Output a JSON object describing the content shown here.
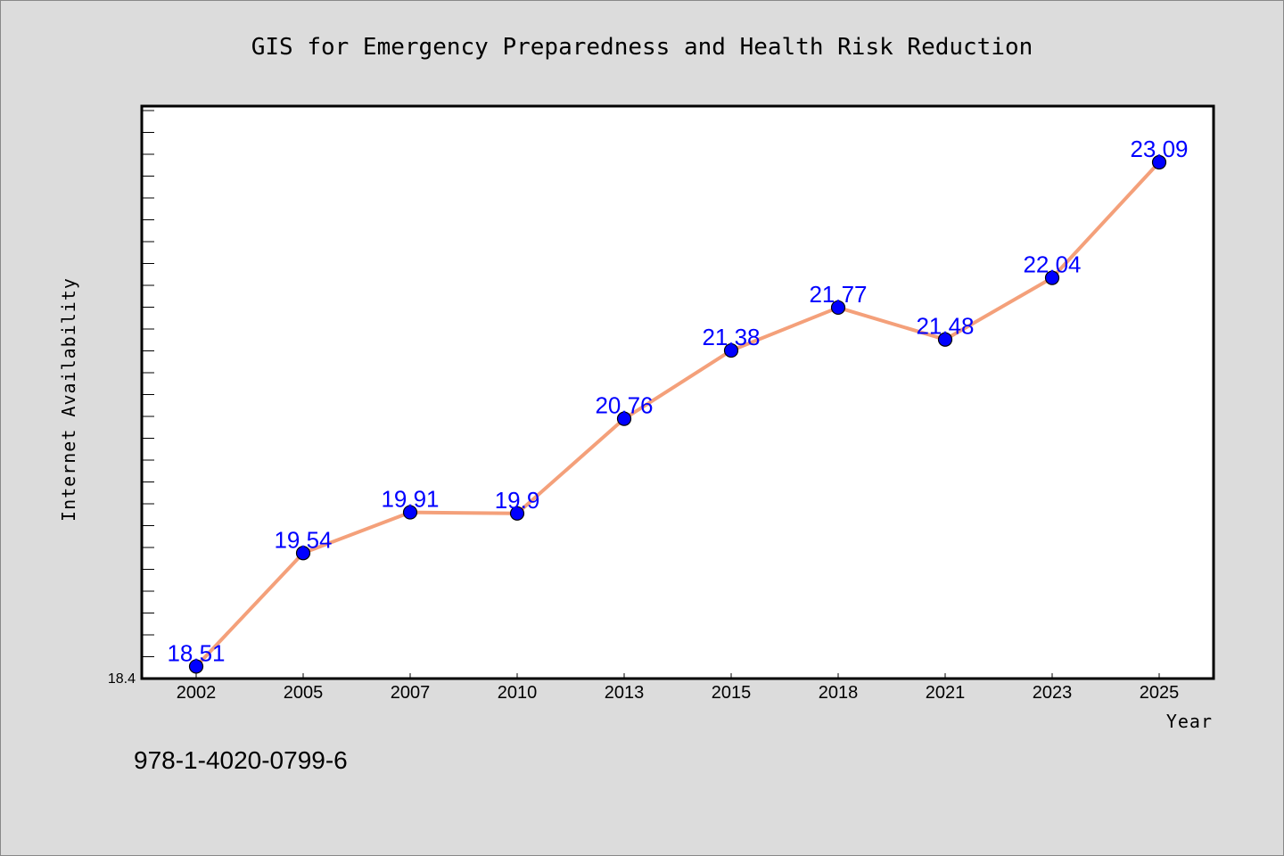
{
  "chart_data": {
    "type": "line",
    "title": "GIS for Emergency Preparedness and Health Risk Reduction",
    "xlabel": "Year",
    "ylabel": "Internet Availability",
    "categories": [
      "2002",
      "2005",
      "2007",
      "2010",
      "2013",
      "2015",
      "2018",
      "2021",
      "2023",
      "2025"
    ],
    "series": [
      {
        "values": [
          18.51,
          19.54,
          19.91,
          19.9,
          20.76,
          21.38,
          21.77,
          21.48,
          22.04,
          23.09
        ],
        "line_color": "#f4a07a",
        "marker_color": "#0000ff"
      }
    ],
    "data_labels": [
      "18.51",
      "19.54",
      "19.91",
      "19.9",
      "20.76",
      "21.38",
      "21.77",
      "21.48",
      "22.04",
      "23.09"
    ],
    "y_tick_labels": [
      "18.4"
    ],
    "ylim": [
      18.4,
      23.6
    ],
    "grid": false,
    "legend": "none"
  },
  "footer": {
    "isbn": "978-1-4020-0799-6"
  }
}
